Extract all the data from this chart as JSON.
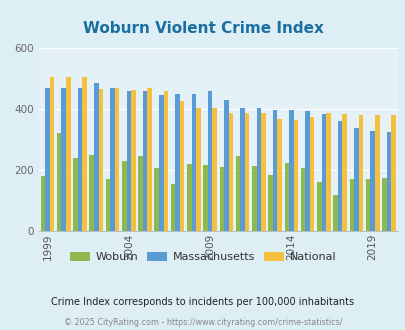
{
  "title": "Woburn Violent Crime Index",
  "title_color": "#1a6fa0",
  "years": [
    1999,
    2000,
    2001,
    2002,
    2003,
    2004,
    2005,
    2006,
    2007,
    2008,
    2009,
    2010,
    2011,
    2012,
    2013,
    2014,
    2015,
    2016,
    2017,
    2018,
    2019,
    2020
  ],
  "woburn": [
    180,
    320,
    240,
    250,
    170,
    230,
    245,
    205,
    155,
    220,
    215,
    210,
    245,
    212,
    183,
    222,
    208,
    160,
    118,
    170,
    170,
    175
  ],
  "massachusetts": [
    470,
    470,
    470,
    485,
    468,
    458,
    458,
    445,
    450,
    450,
    460,
    428,
    404,
    404,
    396,
    396,
    393,
    383,
    360,
    337,
    328,
    325
  ],
  "national": [
    506,
    506,
    506,
    465,
    468,
    463,
    468,
    458,
    425,
    402,
    403,
    385,
    386,
    387,
    368,
    362,
    373,
    386,
    382,
    379,
    379,
    379
  ],
  "woburn_color": "#8db94e",
  "mass_color": "#5b9bd5",
  "national_color": "#f5c040",
  "bg_color": "#ddeef4",
  "plot_bg": "#e4f2f7",
  "ylim": [
    0,
    600
  ],
  "yticks": [
    0,
    200,
    400,
    600
  ],
  "xtick_years": [
    1999,
    2004,
    2009,
    2014,
    2019
  ],
  "subtitle": "Crime Index corresponds to incidents per 100,000 inhabitants",
  "footer": "© 2025 CityRating.com - https://www.cityrating.com/crime-statistics/",
  "legend_labels": [
    "Woburn",
    "Massachusetts",
    "National"
  ],
  "bar_width": 0.28
}
